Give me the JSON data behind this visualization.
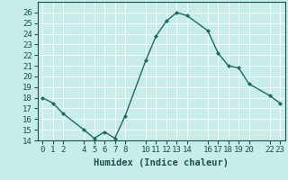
{
  "x": [
    0,
    1,
    2,
    4,
    5,
    6,
    7,
    8,
    10,
    11,
    12,
    13,
    14,
    16,
    17,
    18,
    19,
    20,
    22,
    23
  ],
  "y": [
    18.0,
    17.5,
    16.5,
    15.0,
    14.2,
    14.8,
    14.2,
    16.3,
    21.5,
    23.8,
    25.2,
    26.0,
    25.7,
    24.3,
    22.2,
    21.0,
    20.8,
    19.3,
    18.2,
    17.5
  ],
  "xlim": [
    -0.5,
    23.5
  ],
  "ylim": [
    14,
    27
  ],
  "xticks": [
    0,
    1,
    2,
    4,
    5,
    6,
    7,
    8,
    10,
    11,
    12,
    13,
    14,
    16,
    17,
    18,
    19,
    20,
    22,
    23
  ],
  "yticks": [
    14,
    15,
    16,
    17,
    18,
    19,
    20,
    21,
    22,
    23,
    24,
    25,
    26
  ],
  "xlabel": "Humidex (Indice chaleur)",
  "line_color": "#1b6b5a",
  "marker": "D",
  "markersize": 2.5,
  "bg_color": "#c8ede8",
  "grid_color": "#ffffff",
  "label_color": "#1a5050",
  "tick_fontsize": 6.5,
  "xlabel_fontsize": 7.5
}
